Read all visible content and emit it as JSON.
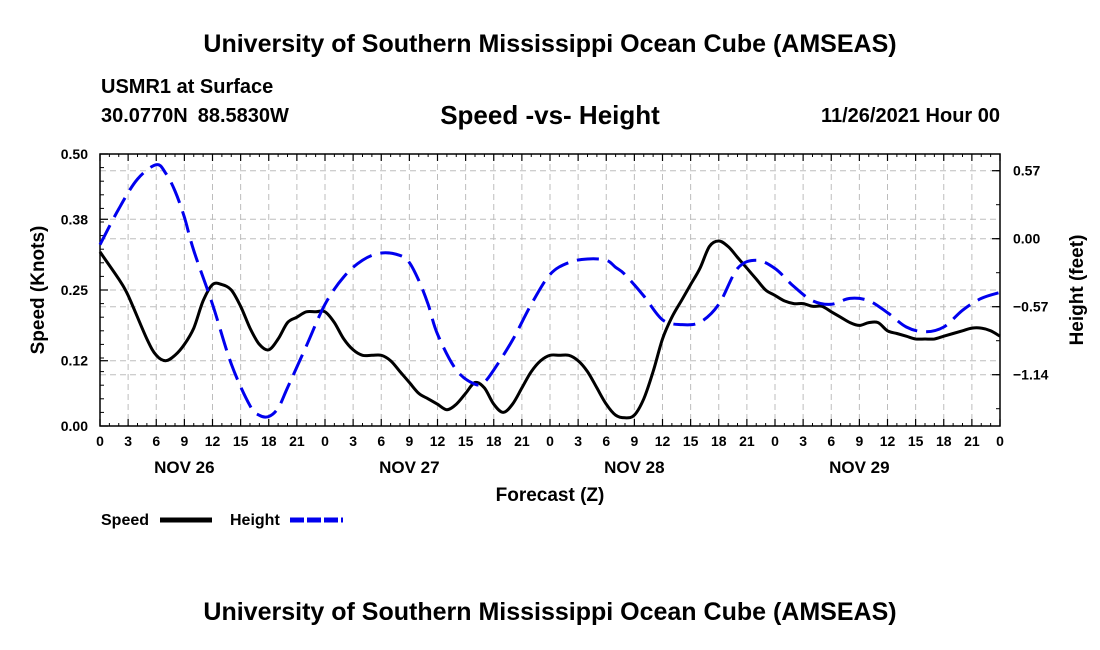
{
  "header": {
    "title": "University of Southern Mississippi Ocean Cube (AMSEAS)",
    "station": "USMR1 at Surface",
    "latitude": "30.0770N",
    "longitude": "88.5830W",
    "subtitle": "Speed -vs- Height",
    "datetime": "11/26/2021 Hour 00"
  },
  "footer": {
    "title": "University of Southern Mississippi Ocean Cube (AMSEAS)"
  },
  "chart_data": {
    "type": "line",
    "xlabel": "Forecast (Z)",
    "ylabel_left": "Speed (Knots)",
    "ylabel_right": "Height (feet)",
    "x_range_hours": [
      0,
      96
    ],
    "x_tick_labels": [
      "0",
      "3",
      "6",
      "9",
      "12",
      "15",
      "18",
      "21",
      "0",
      "3",
      "6",
      "9",
      "12",
      "15",
      "18",
      "21",
      "0",
      "3",
      "6",
      "9",
      "12",
      "15",
      "18",
      "21",
      "0",
      "3",
      "6",
      "9",
      "12",
      "15",
      "18",
      "21",
      "0"
    ],
    "day_labels": [
      {
        "label": "NOV 26",
        "hour": 9
      },
      {
        "label": "NOV 27",
        "hour": 33
      },
      {
        "label": "NOV 28",
        "hour": 57
      },
      {
        "label": "NOV 29",
        "hour": 81
      }
    ],
    "y_left": {
      "range": [
        0,
        0.5
      ],
      "ticks": [
        0.0,
        0.12,
        0.25,
        0.38,
        0.5
      ],
      "tick_labels": [
        "0.00",
        "0.12",
        "0.25",
        "0.38",
        "0.50"
      ]
    },
    "y_right": {
      "range": [
        -1.57,
        0.71
      ],
      "ticks": [
        0.57,
        0.0,
        -0.57,
        -1.14
      ],
      "tick_labels": [
        "0.57",
        "0.00",
        "−0.57",
        "−1.14"
      ]
    },
    "grid": true,
    "legend": [
      {
        "name": "Speed",
        "color": "#000000",
        "style": "solid"
      },
      {
        "name": "Height",
        "color": "#0000ee",
        "style": "dashed"
      }
    ],
    "series": [
      {
        "name": "Speed",
        "axis": "left",
        "color": "#000000",
        "x": [
          0,
          2,
          3,
          5,
          6,
          7,
          8,
          9,
          10,
          11,
          12,
          13,
          14,
          15,
          16,
          17,
          18,
          19,
          20,
          21,
          22,
          23,
          24,
          25,
          26,
          27,
          28,
          29,
          30,
          31,
          32,
          33,
          34,
          35,
          36,
          37,
          38,
          39,
          40,
          41,
          42,
          43,
          44,
          45,
          46,
          47,
          48,
          49,
          50,
          51,
          52,
          53,
          54,
          55,
          56,
          57,
          58,
          59,
          60,
          61,
          62,
          63,
          64,
          65,
          66,
          67,
          68,
          69,
          70,
          71,
          72,
          73,
          74,
          75,
          76,
          77,
          78,
          79,
          80,
          81,
          82,
          83,
          84,
          85,
          86,
          87,
          88,
          89,
          90,
          91,
          92,
          93,
          94,
          95,
          96
        ],
        "y": [
          0.32,
          0.27,
          0.24,
          0.16,
          0.13,
          0.12,
          0.13,
          0.15,
          0.18,
          0.23,
          0.26,
          0.26,
          0.25,
          0.22,
          0.18,
          0.15,
          0.14,
          0.16,
          0.19,
          0.2,
          0.21,
          0.21,
          0.21,
          0.19,
          0.16,
          0.14,
          0.13,
          0.13,
          0.13,
          0.12,
          0.1,
          0.08,
          0.06,
          0.05,
          0.04,
          0.03,
          0.04,
          0.06,
          0.08,
          0.07,
          0.04,
          0.025,
          0.04,
          0.07,
          0.1,
          0.12,
          0.13,
          0.13,
          0.13,
          0.12,
          0.1,
          0.07,
          0.04,
          0.02,
          0.015,
          0.02,
          0.05,
          0.1,
          0.16,
          0.2,
          0.23,
          0.26,
          0.29,
          0.33,
          0.34,
          0.33,
          0.31,
          0.29,
          0.27,
          0.25,
          0.24,
          0.23,
          0.225,
          0.225,
          0.22,
          0.22,
          0.21,
          0.2,
          0.19,
          0.185,
          0.19,
          0.19,
          0.175,
          0.17,
          0.165,
          0.16,
          0.16,
          0.16,
          0.165,
          0.17,
          0.175,
          0.18,
          0.18,
          0.175,
          0.165
        ]
      },
      {
        "name": "Height",
        "axis": "right",
        "color": "#0000ee",
        "x": [
          0,
          2,
          4,
          6,
          7,
          8,
          9,
          10,
          12,
          14,
          16,
          17,
          18,
          19,
          20,
          22,
          24,
          26,
          28,
          30,
          32,
          33,
          34,
          35,
          36,
          38,
          40,
          41,
          42,
          44,
          46,
          48,
          50,
          52,
          54,
          55,
          56,
          58,
          60,
          62,
          64,
          66,
          68,
          70,
          72,
          74,
          76,
          78,
          80,
          82,
          84,
          86,
          88,
          90,
          92,
          94,
          96
        ],
        "y": [
          -0.05,
          0.25,
          0.5,
          0.62,
          0.55,
          0.4,
          0.18,
          -0.1,
          -0.55,
          -1.05,
          -1.4,
          -1.48,
          -1.49,
          -1.42,
          -1.25,
          -0.9,
          -0.55,
          -0.32,
          -0.18,
          -0.12,
          -0.14,
          -0.2,
          -0.35,
          -0.55,
          -0.8,
          -1.1,
          -1.22,
          -1.2,
          -1.1,
          -0.85,
          -0.55,
          -0.3,
          -0.2,
          -0.17,
          -0.18,
          -0.24,
          -0.3,
          -0.48,
          -0.68,
          -0.72,
          -0.7,
          -0.55,
          -0.25,
          -0.18,
          -0.25,
          -0.4,
          -0.52,
          -0.55,
          -0.5,
          -0.52,
          -0.62,
          -0.74,
          -0.78,
          -0.74,
          -0.6,
          -0.5,
          -0.45
        ]
      }
    ]
  }
}
